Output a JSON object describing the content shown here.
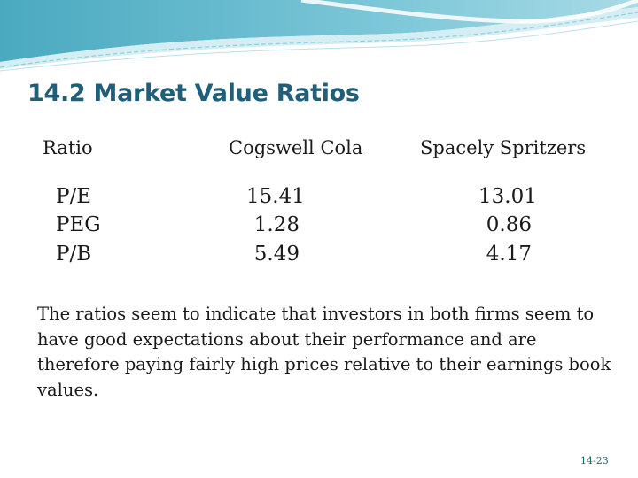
{
  "slide": {
    "title": "14.2 Market Value Ratios",
    "columns": [
      "Ratio",
      "Cogswell Cola",
      "Spacely Spritzers"
    ],
    "rows": [
      {
        "ratio": "P/E",
        "cogswell": "15.41",
        "spacely": "13.01"
      },
      {
        "ratio": "PEG",
        "cogswell": "1.28",
        "spacely": "0.86"
      },
      {
        "ratio": "P/B",
        "cogswell": "5.49",
        "spacely": "4.17"
      }
    ],
    "paragraph": "The ratios seem to indicate that investors in both firms seem to have good expectations about their performance and are therefore paying fairly high prices relative to their earnings book values.",
    "page_number": "14-23"
  },
  "colors": {
    "title": "#1f5f7a",
    "header_band": "#5fb8cc",
    "header_band_light": "#bfe3ec"
  }
}
